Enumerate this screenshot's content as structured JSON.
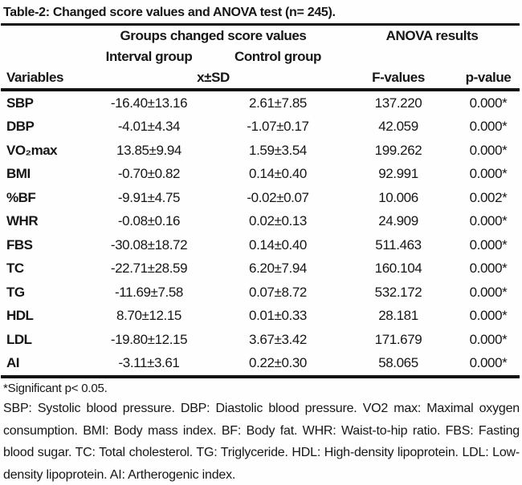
{
  "title": "Table-2: Changed score values and ANOVA test (n= 245).",
  "table": {
    "group_header": "Groups changed score values",
    "anova_header": "ANOVA results",
    "interval_header": "Interval group",
    "control_header": "Control group",
    "variables_header": "Variables",
    "xsd_header": "x±SD",
    "f_header": "F-values",
    "p_header": "p-value",
    "rows": [
      {
        "variable": "SBP",
        "interval": "-16.40±13.16",
        "control": "2.61±7.85",
        "f": "137.220",
        "p": "0.000*"
      },
      {
        "variable": "DBP",
        "interval": "-4.01±4.34",
        "control": "-1.07±0.17",
        "f": "42.059",
        "p": "0.000*"
      },
      {
        "variable": "VO₂max",
        "interval": "13.85±9.94",
        "control": "1.59±3.54",
        "f": "199.262",
        "p": "0.000*"
      },
      {
        "variable": "BMI",
        "interval": "-0.70±0.82",
        "control": "0.14±0.40",
        "f": "92.991",
        "p": "0.000*"
      },
      {
        "variable": "%BF",
        "interval": "-9.91±4.75",
        "control": "-0.02±0.07",
        "f": "10.006",
        "p": "0.002*"
      },
      {
        "variable": "WHR",
        "interval": "-0.08±0.16",
        "control": "0.02±0.13",
        "f": "24.909",
        "p": "0.000*"
      },
      {
        "variable": "FBS",
        "interval": "-30.08±18.72",
        "control": "0.14±0.40",
        "f": "511.463",
        "p": "0.000*"
      },
      {
        "variable": "TC",
        "interval": "-22.71±28.59",
        "control": "6.20±7.94",
        "f": "160.104",
        "p": "0.000*"
      },
      {
        "variable": "TG",
        "interval": "-11.69±7.58",
        "control": "0.07±8.72",
        "f": "532.172",
        "p": "0.000*"
      },
      {
        "variable": "HDL",
        "interval": "8.70±12.15",
        "control": "0.01±0.33",
        "f": "28.181",
        "p": "0.000*"
      },
      {
        "variable": "LDL",
        "interval": "-19.80±12.15",
        "control": "3.67±3.42",
        "f": "171.679",
        "p": "0.000*"
      },
      {
        "variable": "AI",
        "interval": "-3.11±3.61",
        "control": "0.22±0.30",
        "f": "58.065",
        "p": "0.000*"
      }
    ]
  },
  "footnotes": {
    "significance": "*Significant p< 0.05.",
    "abbreviations": "SBP: Systolic blood pressure. DBP: Diastolic blood pressure. VO2 max: Maximal oxygen consumption. BMI: Body mass index. BF: Body fat. WHR: Waist-to-hip ratio. FBS: Fasting blood sugar. TC: Total cholesterol. TG: Triglyceride. HDL: High-density lipoprotein. LDL: Low-density lipoprotein. AI: Artherogenic index."
  }
}
